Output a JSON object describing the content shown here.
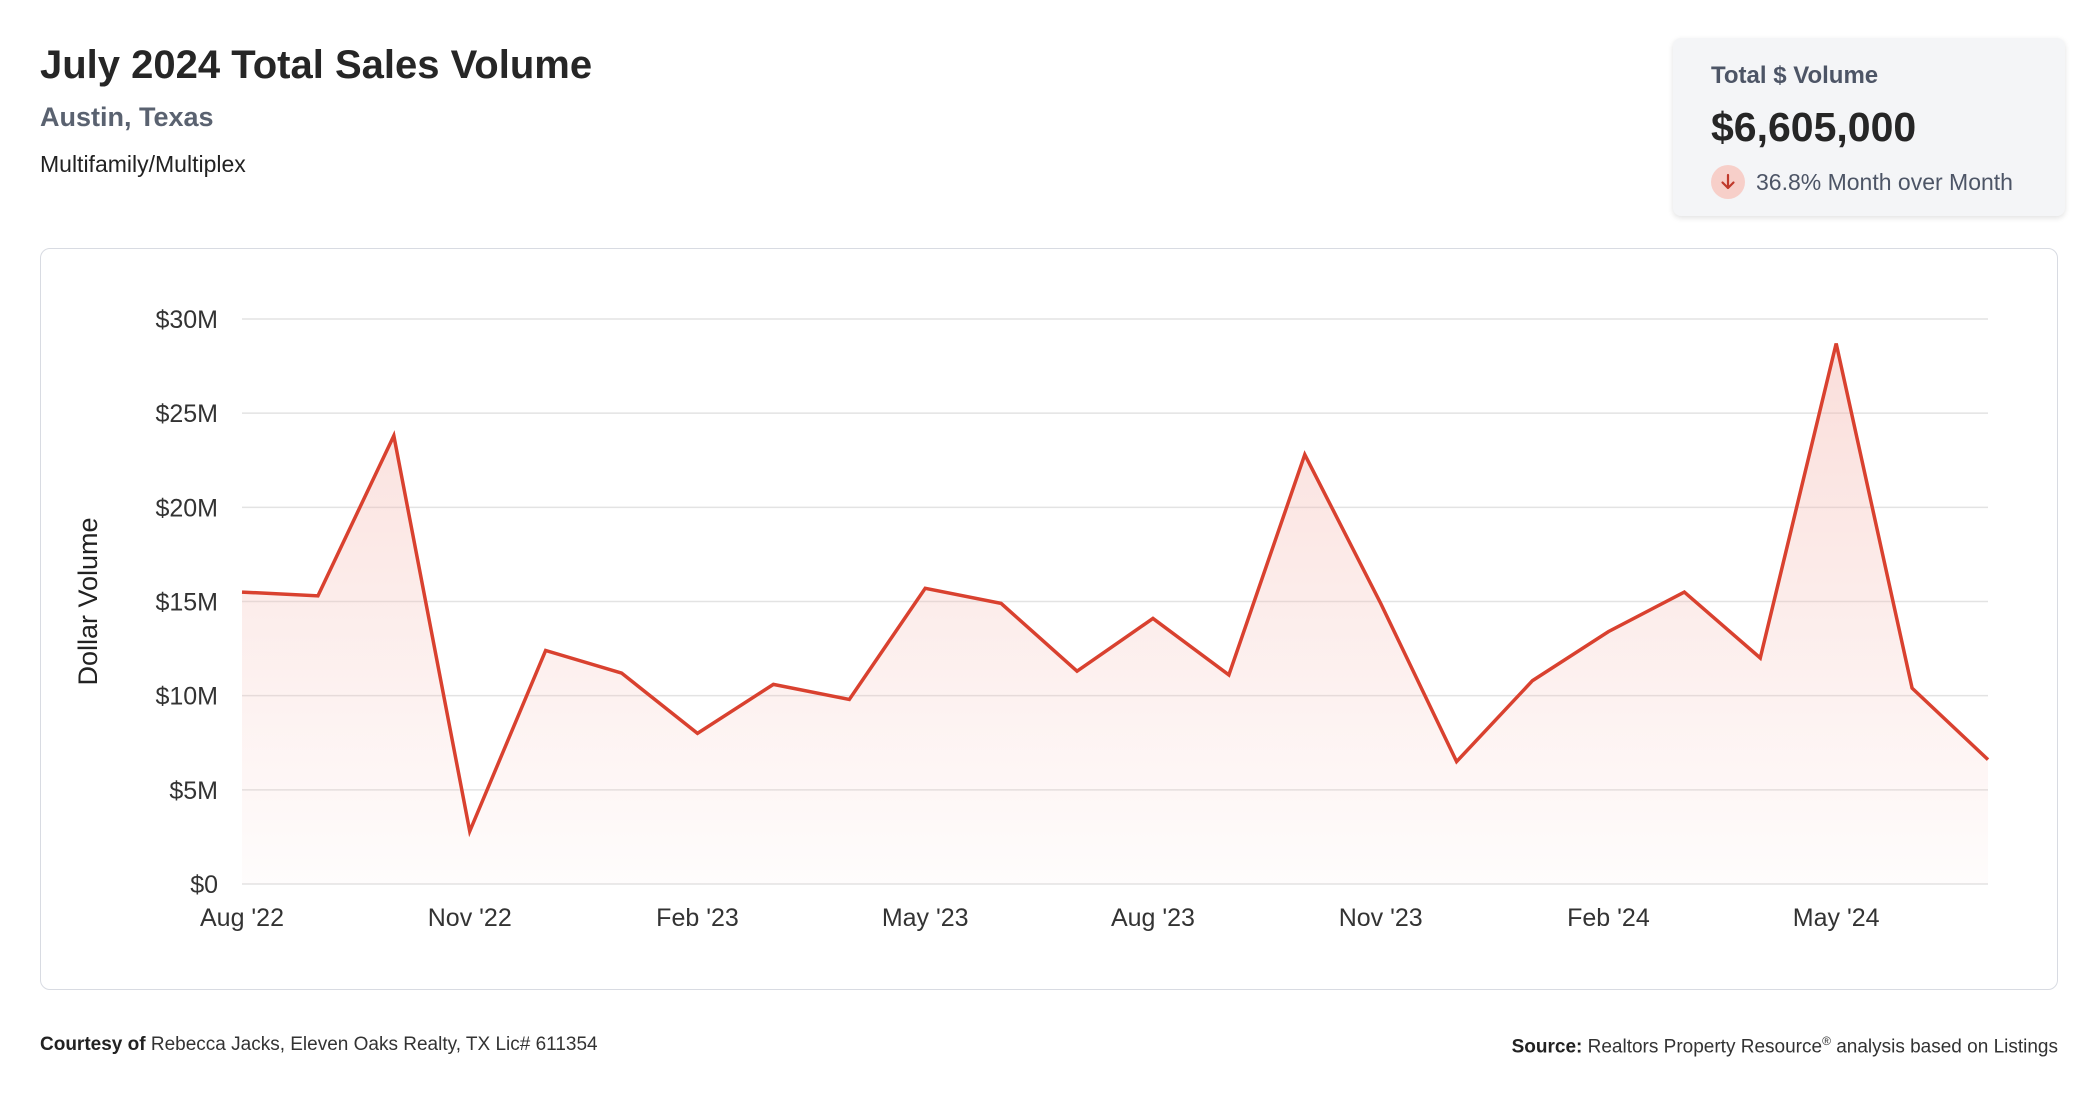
{
  "header": {
    "title": "July 2024 Total Sales Volume",
    "subtitle": "Austin, Texas",
    "category": "Multifamily/Multiplex"
  },
  "stat_card": {
    "label": "Total $ Volume",
    "value": "$6,605,000",
    "change_text": "36.8% Month over Month",
    "direction_icon": "arrow-down-icon"
  },
  "footer": {
    "courtesy_label": "Courtesy of",
    "courtesy_text": "Rebecca Jacks, Eleven Oaks Realty, TX Lic# 611354",
    "source_label": "Source:",
    "source_text": "Realtors Property Resource",
    "source_sup": "®",
    "source_tail": "analysis based on Listings"
  },
  "colors": {
    "line": "#d9412f",
    "fill_top": "#f4b6ae",
    "grid": "#e3e3e3",
    "badge_bg": "#f7cfc9"
  },
  "chart_data": {
    "type": "area",
    "title": "",
    "xlabel": "",
    "ylabel": "Dollar Volume",
    "ylim": [
      0,
      30000000
    ],
    "yticks": [
      {
        "value": 0,
        "label": "$0"
      },
      {
        "value": 5000000,
        "label": "$5M"
      },
      {
        "value": 10000000,
        "label": "$10M"
      },
      {
        "value": 15000000,
        "label": "$15M"
      },
      {
        "value": 20000000,
        "label": "$20M"
      },
      {
        "value": 25000000,
        "label": "$25M"
      },
      {
        "value": 30000000,
        "label": "$30M"
      }
    ],
    "x": [
      "2022-08",
      "2022-09",
      "2022-10",
      "2022-11",
      "2022-12",
      "2023-01",
      "2023-02",
      "2023-03",
      "2023-04",
      "2023-05",
      "2023-06",
      "2023-07",
      "2023-08",
      "2023-09",
      "2023-10",
      "2023-11",
      "2023-12",
      "2024-01",
      "2024-02",
      "2024-03",
      "2024-04",
      "2024-05",
      "2024-06",
      "2024-07"
    ],
    "xtick_labels": [
      {
        "index": 0,
        "label": "Aug '22"
      },
      {
        "index": 3,
        "label": "Nov '22"
      },
      {
        "index": 6,
        "label": "Feb '23"
      },
      {
        "index": 9,
        "label": "May '23"
      },
      {
        "index": 12,
        "label": "Aug '23"
      },
      {
        "index": 15,
        "label": "Nov '23"
      },
      {
        "index": 18,
        "label": "Feb '24"
      },
      {
        "index": 21,
        "label": "May '24"
      }
    ],
    "values": [
      15500000,
      15300000,
      23800000,
      2800000,
      12400000,
      11200000,
      8000000,
      10600000,
      9800000,
      15700000,
      14900000,
      11300000,
      14100000,
      11100000,
      22800000,
      14900000,
      6500000,
      10800000,
      13400000,
      15500000,
      12000000,
      28700000,
      10400000,
      6605000
    ],
    "grid": true,
    "legend": "none"
  }
}
